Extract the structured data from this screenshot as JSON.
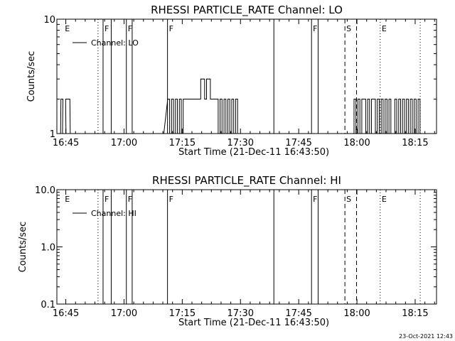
{
  "footer": "23-Oct-2021 12:43",
  "chart_data": [
    {
      "type": "line",
      "title": "RHESSI PARTICLE_RATE Channel: LO",
      "xlabel": "Start Time (21-Dec-11 16:43:50)",
      "ylabel": "Counts/sec",
      "yscale": "log",
      "ylim": [
        1,
        10
      ],
      "yticks": [
        1,
        10
      ],
      "ytick_labels": [
        "1",
        "10"
      ],
      "xticks_min": [
        0,
        15,
        30,
        45,
        60,
        75,
        90
      ],
      "xtick_labels": [
        "16:45",
        "17:00",
        "17:15",
        "17:30",
        "17:45",
        "18:00",
        "18:15"
      ],
      "grid": false,
      "legend_position": "top-left",
      "series": [
        {
          "name": "Channel: LO",
          "x": [
            -1.6,
            -1.0,
            -0.6,
            -0.2,
            0.2,
            0.8,
            1.4,
            1.8,
            2.2,
            3.0,
            4.5,
            6.0,
            8.0,
            10.0,
            11.5,
            12.3,
            12.7,
            13.5,
            14.5,
            16.0,
            18.0,
            19.0,
            20.0,
            20.4,
            21.0,
            22.0,
            23.0,
            24.0,
            25.0,
            26.5,
            27.0,
            27.5,
            28.0,
            28.5,
            29.0,
            29.5,
            30.0,
            30.5,
            31.0,
            31.5,
            32.0,
            32.5,
            33.0,
            33.5,
            34.0,
            34.5,
            35.0,
            35.5,
            36.0,
            36.5,
            37.0,
            37.5,
            38.0,
            38.5,
            39.0,
            39.5,
            40.0,
            40.5,
            41.0,
            41.5,
            42.0,
            42.5,
            43.0,
            43.5,
            44.0,
            44.5,
            45.0,
            46.5,
            50.0,
            53.5,
            55.0,
            58.0,
            61.0,
            63.0,
            64.0,
            65.0,
            66.0,
            67.0,
            68.0,
            69.0,
            70.0,
            71.0,
            72.0,
            73.0,
            74.0,
            74.5,
            75.0,
            75.5,
            76.0,
            76.5,
            77.0,
            77.5,
            78.0,
            78.5,
            79.0,
            79.5,
            80.0,
            80.5,
            81.0,
            81.5,
            82.0,
            82.5,
            83.0,
            83.5,
            84.0,
            84.5,
            85.0,
            85.5,
            86.0,
            86.5,
            87.0,
            87.5,
            88.0,
            88.5,
            89.0,
            89.5,
            90.0,
            90.5,
            91.0,
            91.5,
            92.0,
            92.5,
            93.0,
            93.5,
            94.0,
            94.5,
            95.0
          ],
          "y": [
            1,
            2,
            1,
            1,
            2,
            2,
            1,
            1,
            1,
            1,
            1,
            1,
            1,
            1,
            1,
            1,
            1,
            1,
            1,
            1,
            1,
            1,
            1,
            1,
            1,
            1,
            1,
            1,
            1,
            2,
            1,
            2,
            1,
            2,
            1,
            2,
            1,
            2,
            2,
            2,
            2,
            2,
            2,
            2,
            2,
            2,
            3,
            3,
            2,
            3,
            3,
            2,
            2,
            2,
            2,
            1,
            2,
            1,
            2,
            1,
            2,
            1,
            2,
            1,
            2,
            1,
            1,
            1,
            1,
            1,
            1,
            1,
            1,
            1,
            1,
            1,
            1,
            1,
            1,
            1,
            1,
            1,
            1,
            1,
            1,
            2,
            1,
            2,
            1,
            2,
            2,
            1,
            2,
            1,
            2,
            2,
            1,
            2,
            1,
            2,
            1,
            2,
            1,
            2,
            1,
            1,
            2,
            1,
            2,
            1,
            2,
            1,
            2,
            1,
            2,
            1,
            2,
            1,
            2,
            1,
            1,
            1,
            1,
            1,
            1,
            1,
            1
          ]
        }
      ],
      "markers": [
        {
          "x": -0.6,
          "label": "E",
          "style": "none"
        },
        {
          "x": 8.3,
          "label": "",
          "style": "dotted"
        },
        {
          "x": 9.6,
          "label": "F",
          "style": "solid"
        },
        {
          "x": 11.7,
          "label": "",
          "style": "solid"
        },
        {
          "x": 15.6,
          "label": "F",
          "style": "solid"
        },
        {
          "x": 17.1,
          "label": "",
          "style": "solid"
        },
        {
          "x": 26.2,
          "label": "F",
          "style": "solid"
        },
        {
          "x": 53.6,
          "label": "",
          "style": "solid"
        },
        {
          "x": 63.3,
          "label": "F",
          "style": "solid"
        },
        {
          "x": 65.0,
          "label": "",
          "style": "solid"
        },
        {
          "x": 71.9,
          "label": "S",
          "style": "dashed"
        },
        {
          "x": 74.9,
          "label": "",
          "style": "dashed"
        },
        {
          "x": 81.0,
          "label": "E",
          "style": "dotted"
        },
        {
          "x": 91.3,
          "label": "",
          "style": "dotted"
        }
      ]
    },
    {
      "type": "line",
      "title": "RHESSI PARTICLE_RATE Channel: HI",
      "xlabel": "Start Time (21-Dec-11 16:43:50)",
      "ylabel": "Counts/sec",
      "yscale": "log",
      "ylim": [
        0.1,
        10
      ],
      "yticks": [
        0.1,
        1,
        10
      ],
      "ytick_labels": [
        "0.1",
        "1.0",
        "10.0"
      ],
      "xticks_min": [
        0,
        15,
        30,
        45,
        60,
        75,
        90
      ],
      "xtick_labels": [
        "16:45",
        "17:00",
        "17:15",
        "17:30",
        "17:45",
        "18:00",
        "18:15"
      ],
      "grid": false,
      "legend_position": "top-left",
      "series": [
        {
          "name": "Channel: HI",
          "x": [],
          "y": []
        }
      ],
      "markers": [
        {
          "x": -0.6,
          "label": "E",
          "style": "none"
        },
        {
          "x": 8.3,
          "label": "",
          "style": "dotted"
        },
        {
          "x": 9.6,
          "label": "F",
          "style": "solid"
        },
        {
          "x": 11.7,
          "label": "",
          "style": "solid"
        },
        {
          "x": 15.6,
          "label": "F",
          "style": "solid"
        },
        {
          "x": 17.1,
          "label": "",
          "style": "solid"
        },
        {
          "x": 26.2,
          "label": "F",
          "style": "solid"
        },
        {
          "x": 53.6,
          "label": "",
          "style": "solid"
        },
        {
          "x": 63.3,
          "label": "F",
          "style": "solid"
        },
        {
          "x": 65.0,
          "label": "",
          "style": "solid"
        },
        {
          "x": 71.9,
          "label": "S",
          "style": "dashed"
        },
        {
          "x": 74.9,
          "label": "",
          "style": "dashed"
        },
        {
          "x": 81.0,
          "label": "E",
          "style": "dotted"
        },
        {
          "x": 91.3,
          "label": "",
          "style": "dotted"
        }
      ]
    }
  ]
}
